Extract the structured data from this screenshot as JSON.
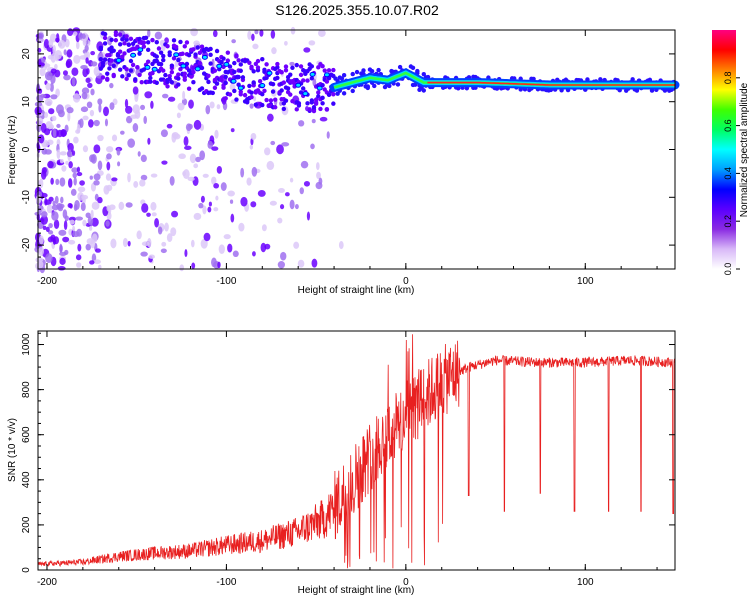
{
  "title": "S126.2025.355.10.07.R02",
  "chart_data": [
    {
      "type": "heatmap",
      "xlabel": "Height of straight line (km)",
      "ylabel": "Frequency (Hz)",
      "xlim": [
        -205,
        150
      ],
      "ylim": [
        -25,
        25
      ],
      "x_ticks": [
        -200,
        -100,
        0,
        100
      ],
      "y_ticks": [
        -20,
        -10,
        0,
        10,
        20
      ],
      "colorbar": {
        "label": "Normalized spectral amplitude",
        "range": [
          0,
          1
        ],
        "ticks": [
          "0.0",
          "0.2",
          "0.4",
          "0.6",
          "0.8"
        ],
        "colors": [
          "#ffffff",
          "#d8b8f8",
          "#8a2be2",
          "#5a00ff",
          "#0000ff",
          "#00a0ff",
          "#00ffff",
          "#00ff60",
          "#40ff00",
          "#ffff00",
          "#ff8000",
          "#ff0000",
          "#ff0080"
        ]
      },
      "ridge": [
        {
          "x": -160,
          "y": 19.5
        },
        {
          "x": -140,
          "y": 18.5
        },
        {
          "x": -120,
          "y": 17.5
        },
        {
          "x": -100,
          "y": 15.5
        },
        {
          "x": -80,
          "y": 14
        },
        {
          "x": -60,
          "y": 13
        },
        {
          "x": -40,
          "y": 13
        },
        {
          "x": -30,
          "y": 14
        },
        {
          "x": -20,
          "y": 15
        },
        {
          "x": -10,
          "y": 14.5
        },
        {
          "x": 0,
          "y": 16
        },
        {
          "x": 10,
          "y": 14
        },
        {
          "x": 40,
          "y": 14
        },
        {
          "x": 80,
          "y": 13.5
        },
        {
          "x": 150,
          "y": 13.5
        }
      ],
      "grid": false
    },
    {
      "type": "line",
      "xlabel": "Height of straight line (km)",
      "ylabel": "SNR (10 * v/v)",
      "xlim": [
        -205,
        150
      ],
      "ylim": [
        0,
        1060
      ],
      "x_ticks": [
        -200,
        -100,
        0,
        100
      ],
      "y_ticks": [
        0,
        200,
        400,
        600,
        800,
        1000
      ],
      "color": "#e82020",
      "envelope": [
        {
          "x": -205,
          "y": 25
        },
        {
          "x": -180,
          "y": 35
        },
        {
          "x": -160,
          "y": 60
        },
        {
          "x": -140,
          "y": 75
        },
        {
          "x": -120,
          "y": 85
        },
        {
          "x": -100,
          "y": 110
        },
        {
          "x": -80,
          "y": 130
        },
        {
          "x": -60,
          "y": 170
        },
        {
          "x": -45,
          "y": 230
        },
        {
          "x": -35,
          "y": 330
        },
        {
          "x": -25,
          "y": 450
        },
        {
          "x": -15,
          "y": 560
        },
        {
          "x": -5,
          "y": 640
        },
        {
          "x": 5,
          "y": 720
        },
        {
          "x": 15,
          "y": 800
        },
        {
          "x": 25,
          "y": 860
        },
        {
          "x": 35,
          "y": 900
        },
        {
          "x": 50,
          "y": 930
        },
        {
          "x": 75,
          "y": 920
        },
        {
          "x": 100,
          "y": 920
        },
        {
          "x": 125,
          "y": 930
        },
        {
          "x": 150,
          "y": 920
        }
      ],
      "dropouts": [
        {
          "x": 35,
          "y": 330
        },
        {
          "x": 55,
          "y": 260
        },
        {
          "x": 75,
          "y": 340
        },
        {
          "x": 94,
          "y": 260
        },
        {
          "x": 113,
          "y": 260
        },
        {
          "x": 131,
          "y": 260
        },
        {
          "x": 149,
          "y": 250
        }
      ],
      "grid": false
    }
  ]
}
